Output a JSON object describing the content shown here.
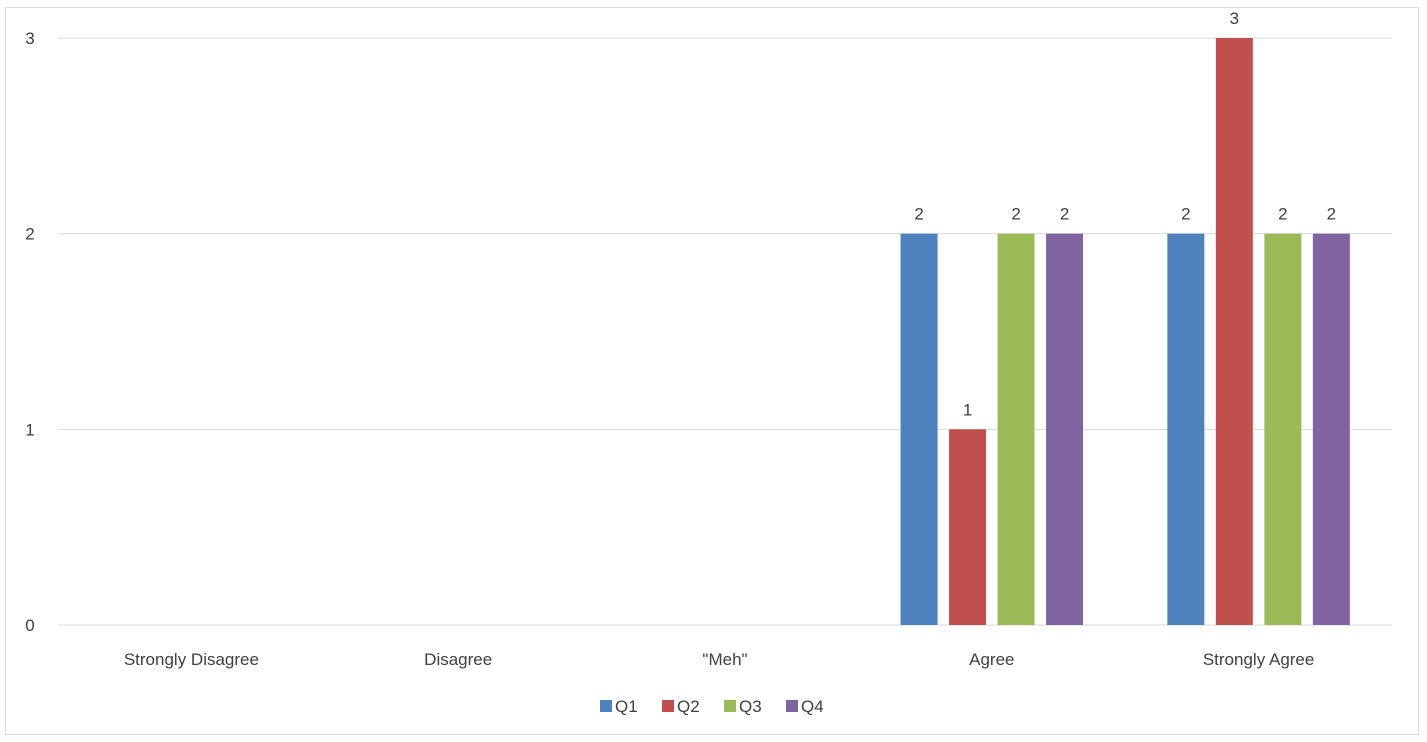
{
  "chart_data": {
    "type": "bar",
    "title": "",
    "xlabel": "",
    "ylabel": "",
    "categories": [
      "Strongly Disagree",
      "Disagree",
      "\"Meh\"",
      "Agree",
      "Strongly Agree"
    ],
    "series": [
      {
        "name": "Q1",
        "color": "#4f81bd",
        "values": [
          0,
          0,
          0,
          2,
          2
        ]
      },
      {
        "name": "Q2",
        "color": "#c0504d",
        "values": [
          0,
          0,
          0,
          1,
          3
        ]
      },
      {
        "name": "Q3",
        "color": "#9bbb59",
        "values": [
          0,
          0,
          0,
          2,
          2
        ]
      },
      {
        "name": "Q4",
        "color": "#8064a2",
        "values": [
          0,
          0,
          0,
          2,
          2
        ]
      }
    ],
    "ylim": [
      0,
      3
    ],
    "yticks": [
      "0",
      "1",
      "2",
      "3"
    ],
    "grid": true,
    "legend_position": "bottom",
    "data_labels_shown_for_nonzero": true
  }
}
